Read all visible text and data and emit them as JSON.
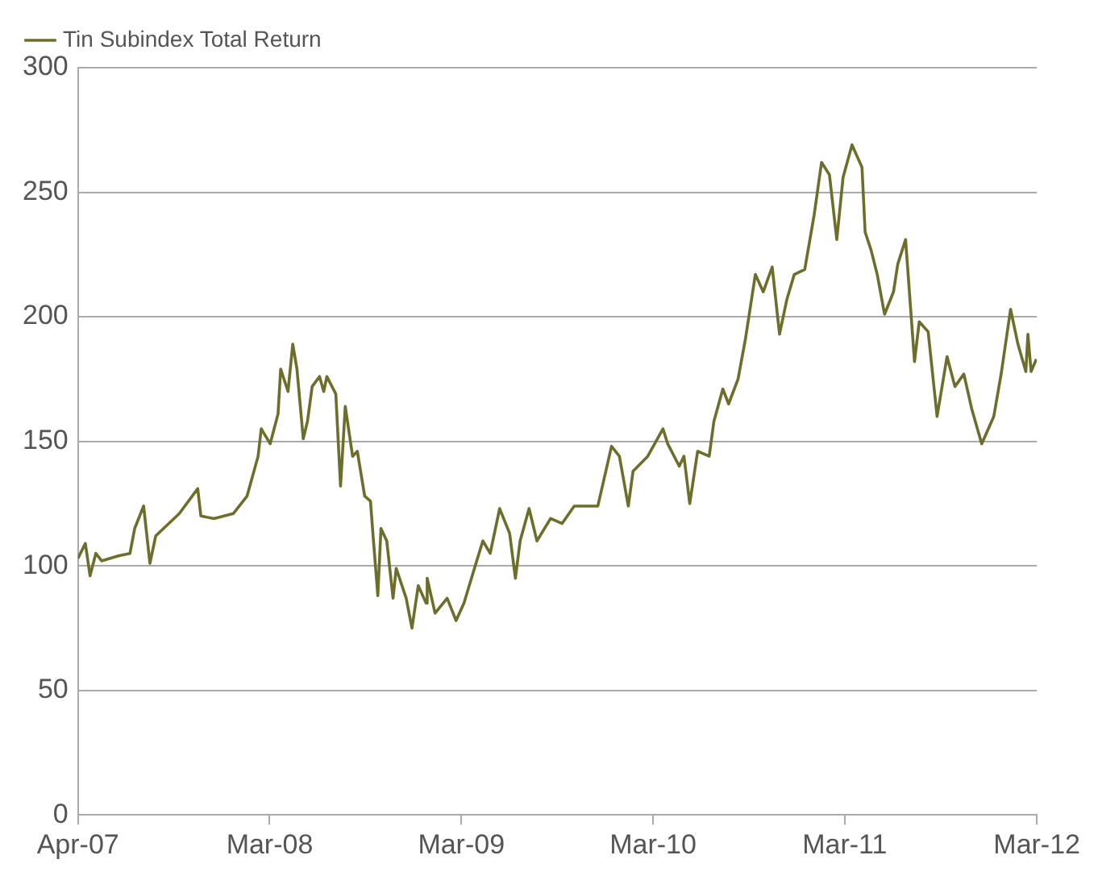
{
  "chart_data": {
    "type": "line",
    "legend": "top left",
    "grid": "y",
    "marker": "none",
    "line_style": "solid",
    "xlim": [
      "2007-04-01",
      "2012-03-31"
    ],
    "xticks": [
      {
        "value": "2007-04-01",
        "label": "Apr-07"
      },
      {
        "value": "2008-03-31",
        "label": "Mar-08"
      },
      {
        "value": "2009-03-31",
        "label": "Mar-09"
      },
      {
        "value": "2010-03-31",
        "label": "Mar-10"
      },
      {
        "value": "2011-03-31",
        "label": "Mar-11"
      },
      {
        "value": "2012-03-31",
        "label": "Mar-12"
      }
    ],
    "ylim": [
      0,
      300
    ],
    "yticks": [
      0,
      50,
      100,
      150,
      200,
      250,
      300
    ],
    "x": [
      "2007-04-01",
      "2007-04-15",
      "2007-04-24",
      "2007-05-05",
      "2007-05-16",
      "2007-06-17",
      "2007-07-09",
      "2007-07-18",
      "2007-08-04",
      "2007-08-16",
      "2007-08-27",
      "2007-10-11",
      "2007-11-15",
      "2007-11-21",
      "2007-12-16",
      "2008-01-22",
      "2008-02-17",
      "2008-03-09",
      "2008-03-15",
      "2008-04-01",
      "2008-04-16",
      "2008-04-21",
      "2008-05-05",
      "2008-05-14",
      "2008-05-22",
      "2008-06-03",
      "2008-06-11",
      "2008-06-20",
      "2008-07-04",
      "2008-07-12",
      "2008-07-18",
      "2008-08-04",
      "2008-08-13",
      "2008-08-22",
      "2008-09-05",
      "2008-09-14",
      "2008-09-28",
      "2008-10-09",
      "2008-10-14",
      "2008-10-23",
      "2008-10-29",
      "2008-11-09",
      "2008-11-21",
      "2008-11-27",
      "2008-12-16",
      "2008-12-27",
      "2009-01-08",
      "2009-01-23",
      "2009-01-25",
      "2009-02-09",
      "2009-03-04",
      "2009-03-21",
      "2009-04-05",
      "2009-04-25",
      "2009-05-11",
      "2009-05-25",
      "2009-06-12",
      "2009-07-01",
      "2009-07-12",
      "2009-07-21",
      "2009-08-07",
      "2009-08-22",
      "2009-09-17",
      "2009-10-09",
      "2009-11-01",
      "2009-12-16",
      "2010-01-11",
      "2010-01-26",
      "2010-02-12",
      "2010-02-21",
      "2010-03-21",
      "2010-04-19",
      "2010-04-28",
      "2010-05-20",
      "2010-05-29",
      "2010-06-09",
      "2010-06-24",
      "2010-07-16",
      "2010-07-25",
      "2010-08-11",
      "2010-08-22",
      "2010-09-09",
      "2010-09-23",
      "2010-10-12",
      "2010-10-27",
      "2010-11-13",
      "2010-11-27",
      "2010-12-11",
      "2010-12-25",
      "2011-01-14",
      "2011-02-01",
      "2011-02-15",
      "2011-03-02",
      "2011-03-16",
      "2011-03-28",
      "2011-04-14",
      "2011-05-03",
      "2011-05-09",
      "2011-05-20",
      "2011-06-01",
      "2011-06-15",
      "2011-07-02",
      "2011-07-10",
      "2011-07-25",
      "2011-08-11",
      "2011-08-20",
      "2011-09-06",
      "2011-09-23",
      "2011-10-12",
      "2011-10-27",
      "2011-11-13",
      "2011-11-28",
      "2011-12-17",
      "2012-01-09",
      "2012-01-23",
      "2012-02-10",
      "2012-02-24",
      "2012-03-10",
      "2012-03-14",
      "2012-03-20",
      "2012-03-30"
    ],
    "series": [
      {
        "name": "Tin Subindex Total Return",
        "color": "#6e6e2c",
        "values": [
          103,
          109,
          96,
          105,
          102,
          104,
          105,
          115,
          124,
          101,
          112,
          121,
          131,
          120,
          119,
          121,
          128,
          144,
          155,
          149,
          161,
          179,
          170,
          189,
          179,
          151,
          158,
          172,
          176,
          170,
          176,
          169,
          132,
          164,
          144,
          146,
          128,
          126,
          112,
          88,
          115,
          110,
          87,
          99,
          87,
          75,
          92,
          85,
          95,
          81,
          87,
          78,
          85,
          99,
          110,
          105,
          123,
          113,
          95,
          110,
          123,
          110,
          119,
          117,
          124,
          124,
          148,
          144,
          124,
          138,
          144,
          155,
          149,
          140,
          144,
          125,
          146,
          144,
          158,
          171,
          165,
          175,
          191,
          217,
          210,
          220,
          193,
          207,
          217,
          219,
          241,
          262,
          257,
          231,
          256,
          269,
          260,
          234,
          227,
          217,
          201,
          210,
          221,
          231,
          182,
          198,
          194,
          160,
          184,
          172,
          177,
          163,
          149,
          160,
          177,
          203,
          189,
          178,
          193,
          178,
          183
        ]
      }
    ]
  }
}
